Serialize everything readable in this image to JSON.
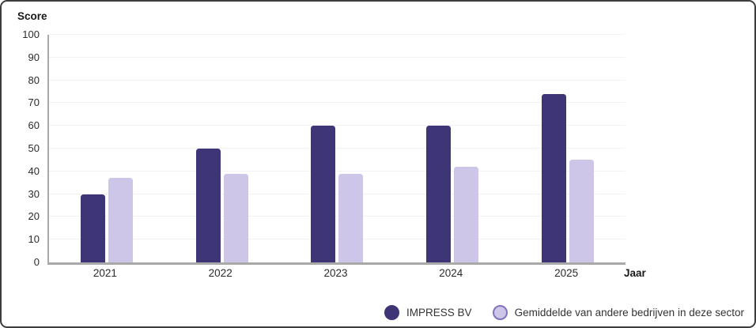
{
  "chart_data": {
    "type": "bar",
    "categories": [
      "2021",
      "2022",
      "2023",
      "2024",
      "2025"
    ],
    "series": [
      {
        "name": "IMPRESS BV",
        "values": [
          30,
          50,
          60,
          60,
          74
        ],
        "color": "#3e3576",
        "border_color": "#3e3576"
      },
      {
        "name": "Gemiddelde van andere bedrijven in deze sector",
        "values": [
          37,
          39,
          39,
          42,
          45
        ],
        "color": "#cdc6e8",
        "border_color": "#8173bd"
      }
    ],
    "title": "",
    "xlabel": "Jaar",
    "ylabel": "Score",
    "ylim": [
      0,
      100
    ],
    "yticks": [
      0,
      10,
      20,
      30,
      40,
      50,
      60,
      70,
      80,
      90,
      100
    ],
    "grid": true,
    "legend_position": "bottom-right"
  }
}
